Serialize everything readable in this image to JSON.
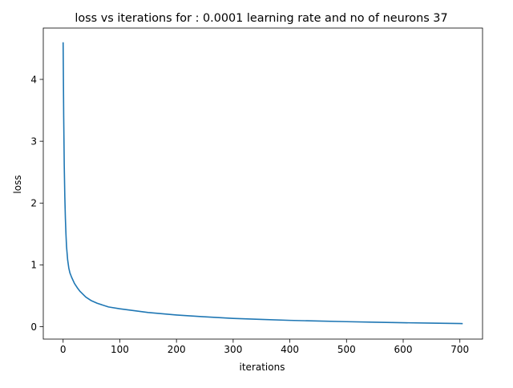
{
  "chart_data": {
    "type": "line",
    "title": "loss vs iterations for : 0.0001 learning rate and no of neurons 37",
    "xlabel": "iterations",
    "ylabel": "loss",
    "xlim": [
      -35,
      740
    ],
    "ylim": [
      -0.2,
      4.83
    ],
    "xticks": [
      0,
      100,
      200,
      300,
      400,
      500,
      600,
      700
    ],
    "yticks": [
      0,
      1,
      2,
      3,
      4
    ],
    "grid": false,
    "legend": "none",
    "series": [
      {
        "color": "#1f77b4",
        "x": [
          0,
          1,
          2,
          3,
          4,
          5,
          6,
          8,
          10,
          12,
          15,
          20,
          25,
          30,
          40,
          50,
          60,
          80,
          100,
          150,
          200,
          250,
          300,
          350,
          400,
          450,
          500,
          550,
          600,
          650,
          700,
          705
        ],
        "y": [
          4.6,
          3.4,
          2.6,
          2.1,
          1.75,
          1.5,
          1.3,
          1.08,
          0.95,
          0.87,
          0.8,
          0.7,
          0.63,
          0.57,
          0.48,
          0.42,
          0.38,
          0.32,
          0.29,
          0.23,
          0.19,
          0.16,
          0.135,
          0.118,
          0.103,
          0.092,
          0.082,
          0.073,
          0.065,
          0.058,
          0.052,
          0.05
        ]
      }
    ]
  }
}
